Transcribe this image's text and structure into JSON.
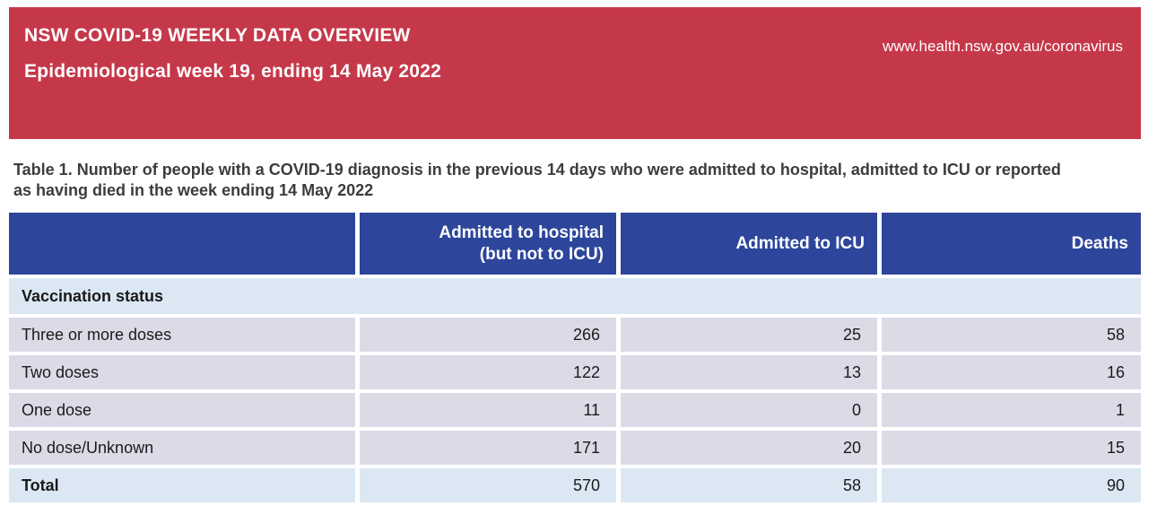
{
  "banner": {
    "title": "NSW COVID-19 WEEKLY DATA OVERVIEW",
    "subtitle": "Epidemiological week 19, ending 14 May 2022",
    "url": "www.health.nsw.gov.au/coronavirus"
  },
  "caption": "Table 1. Number of people with a COVID-19 diagnosis in the previous 14 days who were admitted to hospital, admitted to ICU or reported as having died in the week ending 14 May 2022",
  "table": {
    "header": {
      "col1": "",
      "col2": "Admitted to hospital\n(but not to ICU)",
      "col3": "Admitted to ICU",
      "col4": "Deaths"
    },
    "section_label": "Vaccination status",
    "rows": [
      {
        "label": "Three or more doses",
        "hospital": "266",
        "icu": "25",
        "deaths": "58"
      },
      {
        "label": "Two doses",
        "hospital": "122",
        "icu": "13",
        "deaths": "16"
      },
      {
        "label": "One dose",
        "hospital": "11",
        "icu": "0",
        "deaths": "1"
      },
      {
        "label": "No dose/Unknown",
        "hospital": "171",
        "icu": "20",
        "deaths": "15"
      }
    ],
    "total": {
      "label": "Total",
      "hospital": "570",
      "icu": "58",
      "deaths": "90"
    }
  },
  "colors": {
    "banner_red": "#c5384a",
    "header_blue": "#2d469b",
    "row_lavender": "#dcdae7",
    "row_light_blue": "#dbe8f4"
  }
}
